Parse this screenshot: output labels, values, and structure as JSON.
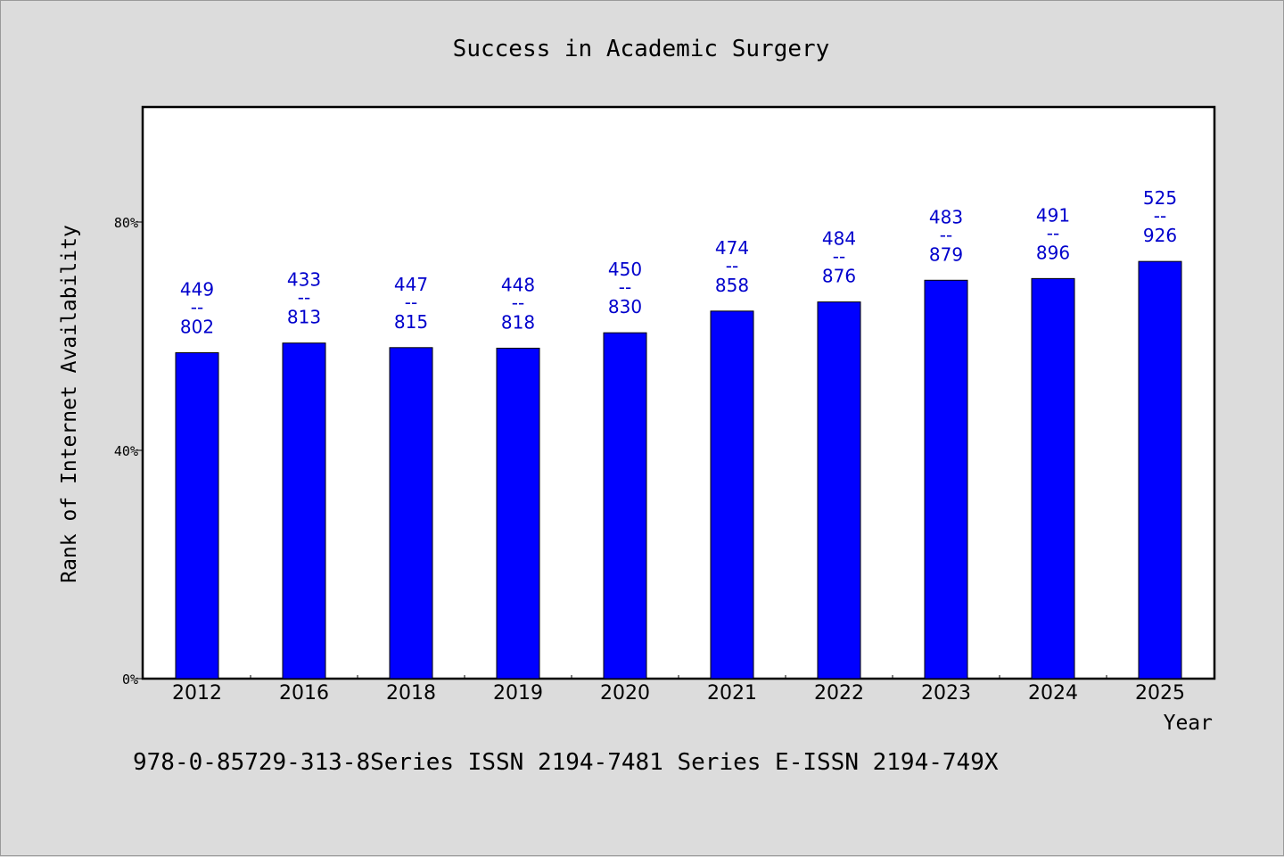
{
  "chart_data": {
    "type": "bar",
    "title": "Success in Academic Surgery",
    "xlabel": "Year",
    "ylabel": "Rank of Internet Availability",
    "ylim": [
      0,
      100
    ],
    "yticks": [
      {
        "value": 0,
        "label": "0%"
      },
      {
        "value": 40,
        "label": "40%"
      },
      {
        "value": 80,
        "label": "80%"
      }
    ],
    "categories": [
      "2012",
      "2016",
      "2018",
      "2019",
      "2020",
      "2021",
      "2022",
      "2023",
      "2024",
      "2025"
    ],
    "values": [
      57.1,
      58.8,
      58.0,
      57.9,
      60.6,
      64.4,
      66.0,
      69.8,
      70.1,
      73.1
    ],
    "labels": [
      {
        "top": "449",
        "sep": "--",
        "bottom": "802"
      },
      {
        "top": "433",
        "sep": "--",
        "bottom": "813"
      },
      {
        "top": "447",
        "sep": "--",
        "bottom": "815"
      },
      {
        "top": "448",
        "sep": "--",
        "bottom": "818"
      },
      {
        "top": "450",
        "sep": "--",
        "bottom": "830"
      },
      {
        "top": "474",
        "sep": "--",
        "bottom": "858"
      },
      {
        "top": "484",
        "sep": "--",
        "bottom": "876"
      },
      {
        "top": "483",
        "sep": "--",
        "bottom": "879"
      },
      {
        "top": "491",
        "sep": "--",
        "bottom": "896"
      },
      {
        "top": "525",
        "sep": "--",
        "bottom": "926"
      }
    ],
    "grid": false,
    "colors": {
      "bar": "#0000ff",
      "label": "#0000cc",
      "background": "#dcdcdc",
      "plot": "#ffffff"
    }
  },
  "footer": "978-0-85729-313-8Series ISSN 2194-7481 Series E-ISSN 2194-749X"
}
